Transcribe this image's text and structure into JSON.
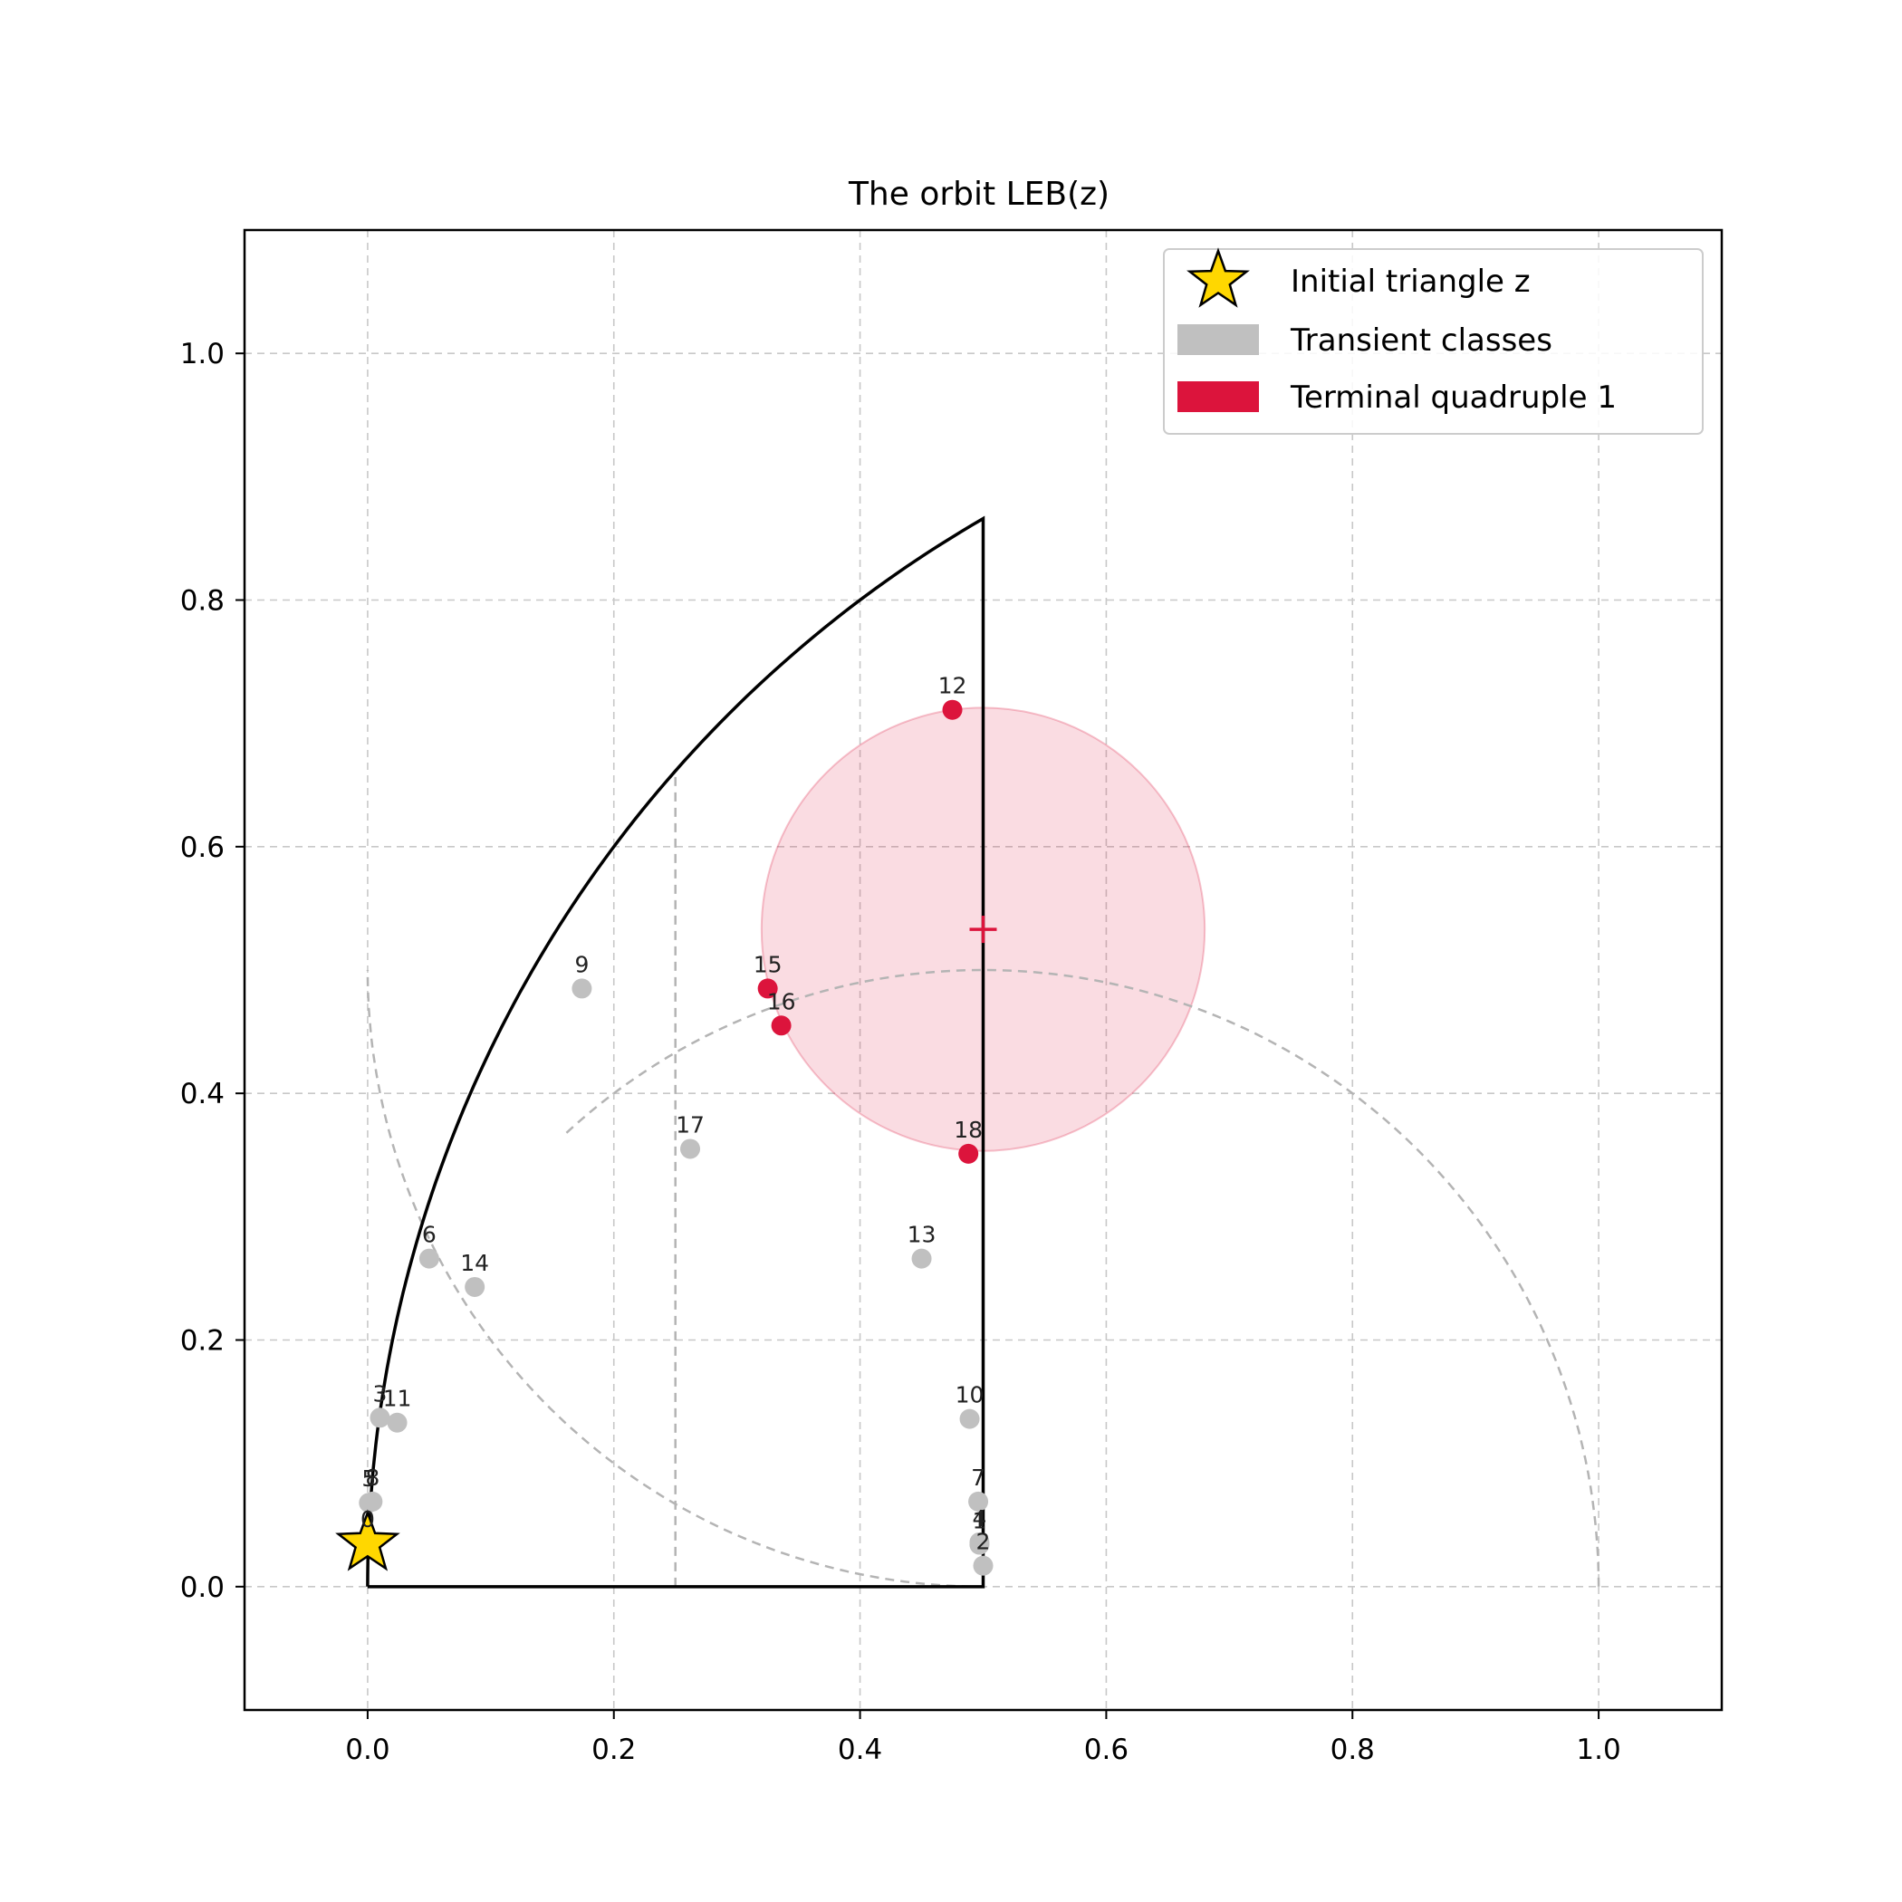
{
  "chart_data": {
    "type": "scatter",
    "title": "The orbit LEB(z)",
    "xlabel": "",
    "ylabel": "",
    "xlim": [
      -0.1,
      1.1
    ],
    "ylim": [
      -0.1,
      1.1
    ],
    "xticks": [
      "0.0",
      "0.2",
      "0.4",
      "0.6",
      "0.8",
      "1.0"
    ],
    "yticks": [
      "0.0",
      "0.2",
      "0.4",
      "0.6",
      "0.8",
      "1.0"
    ],
    "grid": true,
    "legend_position": "top-right",
    "colors": {
      "initial": "#ffd700",
      "transient": "#c0c0c0",
      "terminal": "#dc143c",
      "disk_fill": "rgba(220,20,60,0.15)",
      "boundary": "#000000",
      "guide": "#b4b4b4"
    },
    "initial_triangle": {
      "x": 0.0,
      "y": 0.035,
      "label": "0"
    },
    "transient_points": [
      {
        "label": "1",
        "x": 0.497,
        "y": 0.034
      },
      {
        "label": "2",
        "x": 0.5,
        "y": 0.017
      },
      {
        "label": "3",
        "x": 0.01,
        "y": 0.137
      },
      {
        "label": "4",
        "x": 0.497,
        "y": 0.036
      },
      {
        "label": "5",
        "x": 0.001,
        "y": 0.068
      },
      {
        "label": "6",
        "x": 0.05,
        "y": 0.266
      },
      {
        "label": "7",
        "x": 0.496,
        "y": 0.069
      },
      {
        "label": "8",
        "x": 0.004,
        "y": 0.069
      },
      {
        "label": "9",
        "x": 0.174,
        "y": 0.485
      },
      {
        "label": "10",
        "x": 0.489,
        "y": 0.136
      },
      {
        "label": "11",
        "x": 0.024,
        "y": 0.133
      },
      {
        "label": "13",
        "x": 0.45,
        "y": 0.266
      },
      {
        "label": "14",
        "x": 0.087,
        "y": 0.243
      },
      {
        "label": "17",
        "x": 0.262,
        "y": 0.355
      }
    ],
    "terminal_points": [
      {
        "label": "12",
        "x": 0.475,
        "y": 0.711
      },
      {
        "label": "15",
        "x": 0.325,
        "y": 0.485
      },
      {
        "label": "16",
        "x": 0.336,
        "y": 0.455
      },
      {
        "label": "18",
        "x": 0.488,
        "y": 0.351
      }
    ],
    "terminal_center": {
      "x": 0.5,
      "y": 0.533
    },
    "terminal_radius": 0.18,
    "region": {
      "corners": [
        [
          0,
          0
        ],
        [
          0.5,
          0
        ],
        [
          0.5,
          0.866
        ]
      ],
      "arc": "unit circle centered at (1,0) from (0,0) to (0.5,0.866)"
    },
    "guides": {
      "vertical_x": 0.25,
      "arcs": [
        "circle centered (0.5,0) radius 0.5",
        "circle centered (0,0) radius 0.5"
      ]
    },
    "legend": [
      {
        "marker": "star",
        "label": "Initial triangle z"
      },
      {
        "marker": "patch-transient",
        "label": "Transient classes"
      },
      {
        "marker": "patch-terminal",
        "label": "Terminal quadruple 1"
      }
    ]
  }
}
